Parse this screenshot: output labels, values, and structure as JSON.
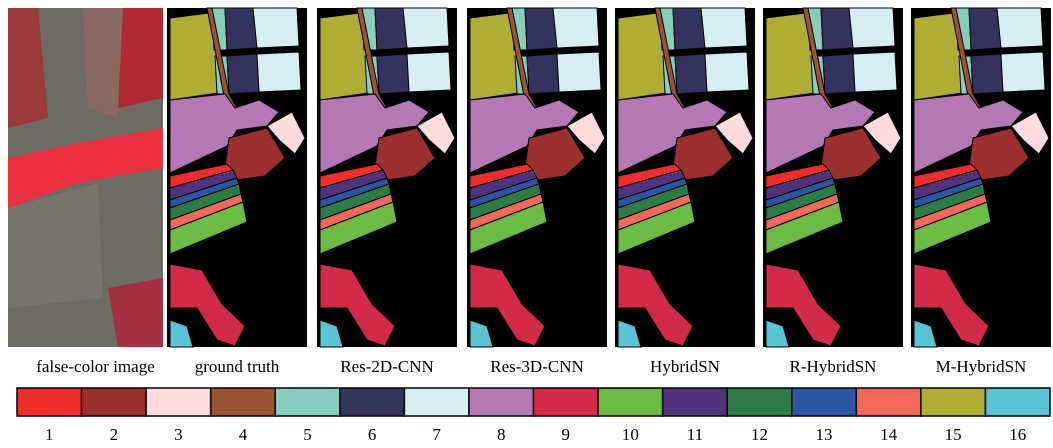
{
  "panels": [
    "false-color image",
    "ground truth",
    "Res-2D-CNN",
    "Res-3D-CNN",
    "HybridSN",
    "R-HybridSN",
    "M-HybridSN"
  ],
  "legend": [
    {
      "label": "1",
      "color": "#ee2d2d"
    },
    {
      "label": "2",
      "color": "#9c2f2f"
    },
    {
      "label": "3",
      "color": "#fcdcdc"
    },
    {
      "label": "4",
      "color": "#9a5434"
    },
    {
      "label": "5",
      "color": "#87cfbc"
    },
    {
      "label": "6",
      "color": "#34325f"
    },
    {
      "label": "7",
      "color": "#d6eef2"
    },
    {
      "label": "8",
      "color": "#b478b4"
    },
    {
      "label": "9",
      "color": "#d22b4a"
    },
    {
      "label": "10",
      "color": "#6dbb45"
    },
    {
      "label": "11",
      "color": "#50337a"
    },
    {
      "label": "12",
      "color": "#2f7b45"
    },
    {
      "label": "13",
      "color": "#2c56a4"
    },
    {
      "label": "14",
      "color": "#f0695a"
    },
    {
      "label": "15",
      "color": "#b0ad35"
    },
    {
      "label": "16",
      "color": "#5bc3d4"
    }
  ]
}
